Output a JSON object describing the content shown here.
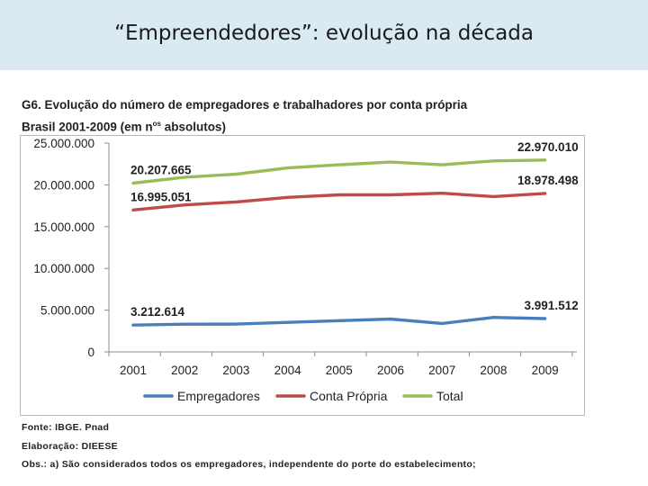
{
  "slide": {
    "title": "“Empreendedores”: evolução na década"
  },
  "chart_heading": {
    "line1": "G6. Evolução do número de empregadores e trabalhadores por conta própria",
    "line2_prefix": "Brasil 2001-2009 (em n",
    "line2_sup": "os",
    "line2_suffix": " absolutos)"
  },
  "chart_data": {
    "type": "line",
    "title": "G6. Evolução do número de empregadores e trabalhadores por conta própria",
    "xlabel": "",
    "ylabel": "",
    "categories": [
      "2001",
      "2002",
      "2003",
      "2004",
      "2005",
      "2006",
      "2007",
      "2008",
      "2009"
    ],
    "ylim": [
      0,
      25000000
    ],
    "yticks": [
      0,
      5000000,
      10000000,
      15000000,
      20000000,
      25000000
    ],
    "ytick_labels": [
      "0",
      "5.000.000",
      "10.000.000",
      "15.000.000",
      "20.000.000",
      "25.000.000"
    ],
    "grid": false,
    "legend_position": "bottom",
    "series": [
      {
        "name": "Empregadores",
        "color": "#4a7ebb",
        "values": [
          3212614,
          3320000,
          3330000,
          3530000,
          3740000,
          3930000,
          3400000,
          4130000,
          3991512
        ]
      },
      {
        "name": "Conta Própria",
        "color": "#be4b48",
        "values": [
          16995051,
          17600000,
          17950000,
          18500000,
          18800000,
          18800000,
          19000000,
          18600000,
          18978498
        ]
      },
      {
        "name": "Total",
        "color": "#9bbb59",
        "values": [
          20207665,
          20920000,
          21280000,
          22030000,
          22400000,
          22730000,
          22400000,
          22870000,
          22970010
        ]
      }
    ],
    "annotations": [
      {
        "series": 0,
        "point": 0,
        "text": "3.212.614",
        "place": "above"
      },
      {
        "series": 0,
        "point": 8,
        "text": "3.991.512",
        "place": "above"
      },
      {
        "series": 1,
        "point": 0,
        "text": "16.995.051",
        "place": "above"
      },
      {
        "series": 1,
        "point": 8,
        "text": "18.978.498",
        "place": "above"
      },
      {
        "series": 2,
        "point": 0,
        "text": "20.207.665",
        "place": "above"
      },
      {
        "series": 2,
        "point": 8,
        "text": "22.970.010",
        "place": "above"
      }
    ]
  },
  "notes": {
    "source": "Fonte: IBGE. Pnad",
    "prepared_by": "Elaboração: DIEESE",
    "obs": "Obs.: a) São considerados todos os empregadores, independente do porte do estabelecimento;"
  }
}
